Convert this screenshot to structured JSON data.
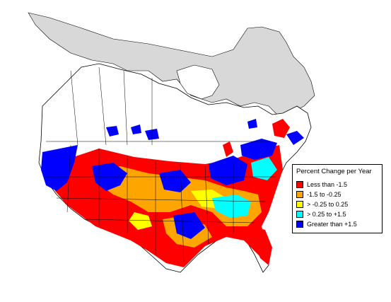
{
  "legend": {
    "title": "Percent Change per Year",
    "items": [
      {
        "label": "Less than -1.5",
        "color": "#ff0000"
      },
      {
        "label": "-1.5 to -0.25",
        "color": "#ffa500"
      },
      {
        "label": "> -0.25 to 0.25",
        "color": "#ffff00"
      },
      {
        "label": "> 0.25 to +1.5",
        "color": "#00ffff"
      },
      {
        "label": "Greater than +1.5",
        "color": "#0000ff"
      }
    ]
  },
  "colors": {
    "no_data": "#d8d8d8",
    "land": "#ffffff",
    "outline": "#000000"
  }
}
